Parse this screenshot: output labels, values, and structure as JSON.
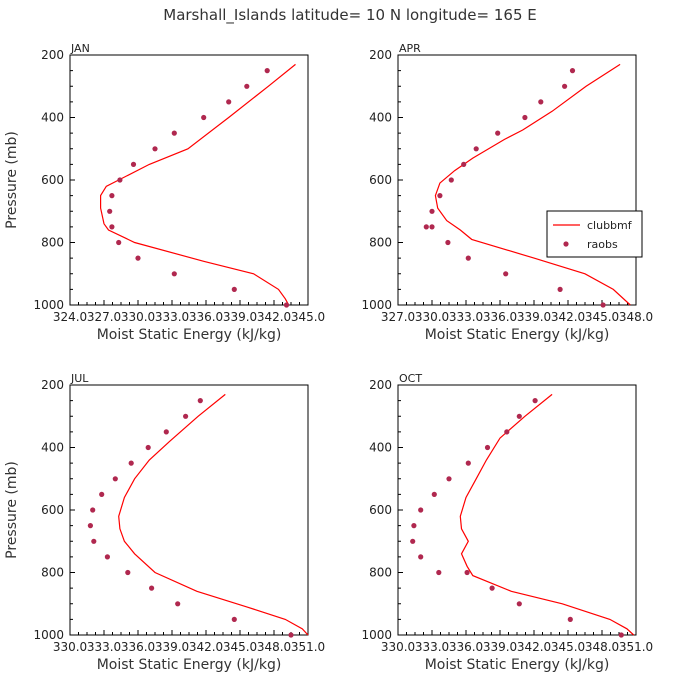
{
  "title": "Marshall_Islands  latitude= 10 N longitude= 165 E",
  "colors": {
    "model_line": "#ff0000",
    "obs_marker": "#b0284f"
  },
  "legend": {
    "model": "clubbmf",
    "obs": "raobs",
    "placement": "inside-right (APR panel)"
  },
  "chart_data": [
    {
      "type": "line",
      "panel": "JAN",
      "title": "JAN",
      "xlabel": "Moist Static Energy (kJ/kg)",
      "ylabel": "Pressure (mb)",
      "xlim": [
        324.0,
        345.0
      ],
      "ylim": [
        1000,
        200
      ],
      "xtick_labels": [
        "324.0",
        "327.0",
        "330.0",
        "333.0",
        "336.0",
        "339.0",
        "342.0",
        "345.0"
      ],
      "ytick_labels": [
        "200",
        "400",
        "600",
        "800",
        "1000"
      ],
      "series": [
        {
          "name": "clubbmf",
          "kind": "line",
          "x": [
            343.9,
            341.5,
            338.0,
            334.4,
            331.0,
            328.3,
            327.2,
            326.7,
            326.7,
            327.0,
            327.4,
            329.7,
            335.8,
            340.2,
            342.4,
            343.0,
            343.3
          ],
          "y": [
            230,
            300,
            400,
            500,
            550,
            600,
            620,
            650,
            690,
            740,
            760,
            800,
            860,
            900,
            950,
            980,
            1000
          ]
        },
        {
          "name": "raobs",
          "kind": "scatter",
          "x": [
            341.4,
            339.6,
            338.0,
            335.8,
            333.2,
            331.5,
            329.6,
            328.4,
            327.7,
            327.5,
            327.7,
            328.3,
            330.0,
            333.2,
            338.5,
            343.1
          ],
          "y": [
            250,
            300,
            350,
            400,
            450,
            500,
            550,
            600,
            650,
            700,
            750,
            800,
            850,
            900,
            950,
            1000
          ]
        }
      ]
    },
    {
      "type": "line",
      "panel": "APR",
      "title": "APR",
      "xlabel": "Moist Static Energy (kJ/kg)",
      "ylabel": "",
      "xlim": [
        327.0,
        348.0
      ],
      "ylim": [
        1000,
        200
      ],
      "xtick_labels": [
        "327.0",
        "330.0",
        "333.0",
        "336.0",
        "339.0",
        "342.0",
        "345.0",
        "348.0"
      ],
      "ytick_labels": [
        "200",
        "400",
        "600",
        "800",
        "1000"
      ],
      "series": [
        {
          "name": "clubbmf",
          "kind": "line",
          "x": [
            346.6,
            343.6,
            340.6,
            338.0,
            336.4,
            333.6,
            332.0,
            330.7,
            330.3,
            330.5,
            331.3,
            332.5,
            333.5,
            339.0,
            343.5,
            346.0,
            347.5
          ],
          "y": [
            230,
            300,
            380,
            440,
            470,
            530,
            570,
            610,
            650,
            690,
            730,
            760,
            790,
            850,
            900,
            950,
            1000
          ]
        },
        {
          "name": "raobs",
          "kind": "scatter",
          "x": [
            342.4,
            341.7,
            339.6,
            338.2,
            335.8,
            333.9,
            332.8,
            331.7,
            330.7,
            330.0,
            329.5,
            330.0,
            331.4,
            333.2,
            336.5,
            341.3,
            345.1
          ],
          "y": [
            250,
            300,
            350,
            400,
            450,
            500,
            550,
            600,
            650,
            700,
            750,
            750,
            800,
            850,
            900,
            950,
            1000
          ]
        }
      ]
    },
    {
      "type": "line",
      "panel": "JUL",
      "title": "JUL",
      "xlabel": "Moist Static Energy (kJ/kg)",
      "ylabel": "Pressure (mb)",
      "xlim": [
        330.0,
        351.0
      ],
      "ylim": [
        1000,
        200
      ],
      "xtick_labels": [
        "330.0",
        "333.0",
        "336.0",
        "339.0",
        "342.0",
        "345.0",
        "348.0",
        "351.0"
      ],
      "ytick_labels": [
        "200",
        "400",
        "600",
        "800",
        "1000"
      ],
      "series": [
        {
          "name": "clubbmf",
          "kind": "line",
          "x": [
            343.7,
            341.3,
            338.8,
            337.0,
            335.7,
            334.8,
            334.3,
            334.4,
            334.8,
            335.7,
            337.5,
            341.2,
            345.6,
            349.0,
            350.5,
            351.0
          ],
          "y": [
            230,
            300,
            380,
            440,
            500,
            560,
            620,
            660,
            700,
            740,
            800,
            860,
            910,
            950,
            980,
            1000
          ]
        },
        {
          "name": "raobs",
          "kind": "scatter",
          "x": [
            341.5,
            340.2,
            338.5,
            336.9,
            335.4,
            334.0,
            332.8,
            332.0,
            331.8,
            332.1,
            333.3,
            335.1,
            337.2,
            339.5,
            344.5,
            349.5
          ],
          "y": [
            250,
            300,
            350,
            400,
            450,
            500,
            550,
            600,
            650,
            700,
            750,
            800,
            850,
            900,
            950,
            1000
          ]
        }
      ]
    },
    {
      "type": "line",
      "panel": "OCT",
      "title": "OCT",
      "xlabel": "Moist Static Energy (kJ/kg)",
      "ylabel": "",
      "xlim": [
        330.0,
        351.0
      ],
      "ylim": [
        1000,
        200
      ],
      "xtick_labels": [
        "330.0",
        "333.0",
        "336.0",
        "339.0",
        "342.0",
        "345.0",
        "348.0",
        "351.0"
      ],
      "ytick_labels": [
        "200",
        "400",
        "600",
        "800",
        "1000"
      ],
      "series": [
        {
          "name": "clubbmf",
          "kind": "line",
          "x": [
            343.6,
            341.2,
            339.0,
            337.8,
            336.9,
            336.0,
            335.5,
            335.6,
            336.2,
            335.6,
            336.1,
            336.6,
            340.0,
            344.5,
            348.7,
            350.2,
            350.8
          ],
          "y": [
            230,
            300,
            370,
            440,
            500,
            560,
            620,
            660,
            700,
            740,
            780,
            810,
            860,
            900,
            950,
            980,
            1000
          ]
        },
        {
          "name": "raobs",
          "kind": "scatter",
          "x": [
            342.1,
            340.7,
            339.6,
            337.9,
            336.2,
            334.5,
            333.2,
            332.0,
            331.4,
            331.3,
            332.0,
            333.6,
            336.1,
            338.3,
            340.7,
            345.2,
            349.7
          ],
          "y": [
            250,
            300,
            350,
            400,
            450,
            500,
            550,
            600,
            650,
            700,
            750,
            800,
            800,
            850,
            900,
            950,
            1000
          ]
        }
      ]
    }
  ]
}
